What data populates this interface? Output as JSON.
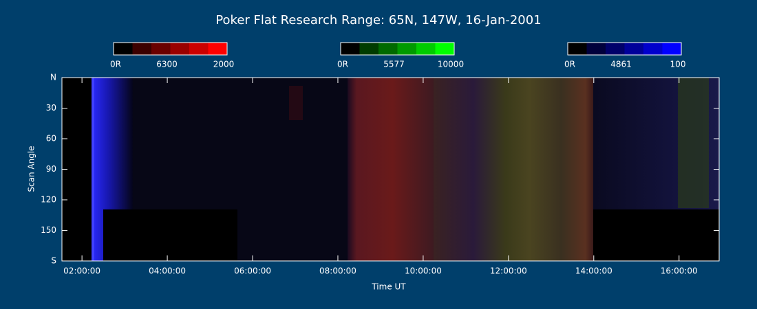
{
  "chart_data": {
    "type": "keogram",
    "title": "Poker Flat Research Range: 65N, 147W, 16-Jan-2001",
    "x_label": "Time UT",
    "y_label": "Scan Angle",
    "xlim": [
      1.53,
      16.94
    ],
    "xticks": [
      {
        "value": 2,
        "label": "02:00:00"
      },
      {
        "value": 4,
        "label": "04:00:00"
      },
      {
        "value": 6,
        "label": "06:00:00"
      },
      {
        "value": 8,
        "label": "08:00:00"
      },
      {
        "value": 10,
        "label": "10:00:00"
      },
      {
        "value": 12,
        "label": "12:00:00"
      },
      {
        "value": 14,
        "label": "14:00:00"
      },
      {
        "value": 16,
        "label": "16:00:00"
      }
    ],
    "ylim": [
      0,
      180
    ],
    "yticks": [
      {
        "value": 0,
        "label": "N"
      },
      30,
      60,
      90,
      120,
      150,
      {
        "value": 180,
        "label": "S"
      }
    ],
    "colorbars": [
      {
        "labels": [
          "0R",
          "6300",
          "2000"
        ],
        "colors": [
          "#000000",
          "#3c0000",
          "#6a0000",
          "#9a0000",
          "#cc0000",
          "#ff0000"
        ]
      },
      {
        "labels": [
          "0R",
          "5577",
          "10000"
        ],
        "colors": [
          "#000000",
          "#003c00",
          "#006a00",
          "#009a00",
          "#00cc00",
          "#00ff00"
        ]
      },
      {
        "labels": [
          "0R",
          "4861",
          "100"
        ],
        "colors": [
          "#000000",
          "#00003c",
          "#00006a",
          "#00009a",
          "#0000cc",
          "#0000ff"
        ]
      }
    ]
  }
}
